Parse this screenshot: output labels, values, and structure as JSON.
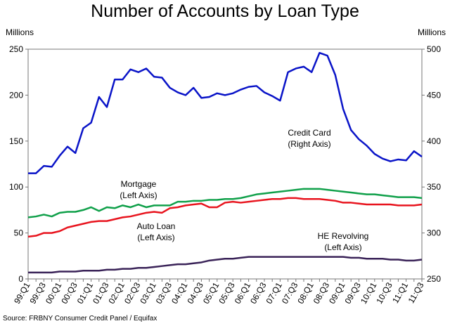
{
  "chart_data": {
    "type": "line",
    "title": "Number of Accounts by Loan Type",
    "y_label": "Millions",
    "y2_label": "Millions",
    "source": "Source: FRBNY Consumer Credit Panel / Equifax",
    "categories": [
      "99:Q1",
      null,
      "99:Q3",
      null,
      "00:Q1",
      null,
      "00:Q3",
      null,
      "01:Q1",
      null,
      "01:Q3",
      null,
      "02:Q1",
      null,
      "02:Q3",
      null,
      "03:Q1",
      null,
      "03:Q3",
      null,
      "04:Q1",
      null,
      "04:Q3",
      null,
      "05:Q1",
      null,
      "05:Q3",
      null,
      "06:Q1",
      null,
      "06:Q3",
      null,
      "07:Q1",
      null,
      "07:Q3",
      null,
      "08:Q1",
      null,
      "08:Q3",
      null,
      "09:Q1",
      null,
      "09:Q3",
      null,
      "10:Q1",
      null,
      "10:Q3",
      null,
      "11:Q1",
      null,
      "11:Q3"
    ],
    "ylim": [
      0,
      250
    ],
    "yticks": [
      0,
      50,
      100,
      150,
      200,
      250
    ],
    "y2lim": [
      250,
      500
    ],
    "y2ticks": [
      250,
      300,
      350,
      400,
      450,
      500
    ],
    "series": [
      {
        "name": "Credit Card",
        "axis_note": "(Right Axis)",
        "color": "#0a14c8",
        "axis": "y2",
        "values": [
          365,
          365,
          373,
          372,
          384,
          394,
          387,
          414,
          420,
          448,
          437,
          467,
          467,
          478,
          475,
          479,
          470,
          469,
          458,
          453,
          450,
          458,
          447,
          448,
          452,
          450,
          452,
          456,
          459,
          460,
          453,
          449,
          444,
          475,
          479,
          481,
          475,
          496,
          493,
          472,
          435,
          412,
          402,
          395,
          386,
          381,
          378,
          380,
          379,
          389,
          383
        ]
      },
      {
        "name": "Mortgage",
        "axis_note": "(Left Axis)",
        "color": "#10a04a",
        "values": [
          67,
          68,
          70,
          68,
          72,
          73,
          73,
          75,
          78,
          74,
          78,
          77,
          80,
          78,
          81,
          78,
          80,
          80,
          80,
          84,
          84,
          85,
          85,
          86,
          86,
          87,
          87,
          88,
          90,
          92,
          93,
          94,
          95,
          96,
          97,
          98,
          98,
          98,
          97,
          96,
          95,
          94,
          93,
          92,
          92,
          91,
          90,
          89,
          89,
          89,
          88
        ]
      },
      {
        "name": "Auto Loan",
        "axis_note": "(Left Axis)",
        "color": "#e8141e",
        "values": [
          46,
          47,
          50,
          50,
          52,
          56,
          58,
          60,
          62,
          63,
          63,
          65,
          67,
          68,
          70,
          72,
          73,
          72,
          77,
          78,
          80,
          81,
          82,
          78,
          78,
          83,
          84,
          83,
          84,
          85,
          86,
          87,
          87,
          88,
          88,
          87,
          87,
          87,
          86,
          85,
          83,
          83,
          82,
          81,
          81,
          81,
          81,
          80,
          80,
          80,
          81
        ]
      },
      {
        "name": "HE Revolving",
        "axis_note": "(Left Axis)",
        "color": "#3a2358",
        "values": [
          7,
          7,
          7,
          7,
          8,
          8,
          8,
          9,
          9,
          9,
          10,
          10,
          11,
          11,
          12,
          12,
          13,
          14,
          15,
          16,
          16,
          17,
          18,
          20,
          21,
          22,
          22,
          23,
          24,
          24,
          24,
          24,
          24,
          24,
          24,
          24,
          24,
          24,
          24,
          24,
          24,
          23,
          23,
          22,
          22,
          22,
          21,
          21,
          20,
          20,
          21
        ]
      }
    ]
  }
}
